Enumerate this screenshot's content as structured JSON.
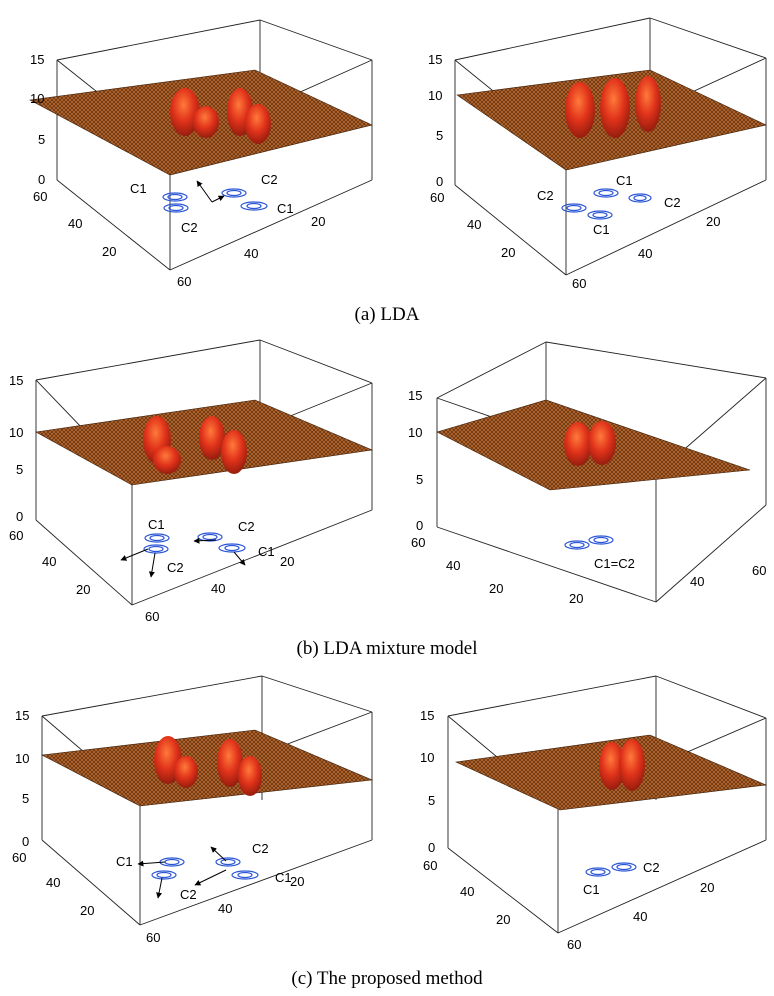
{
  "panels": [
    {
      "id": "a-left",
      "z_ticks": [
        "15",
        "10",
        "5",
        "0"
      ],
      "y_ticks": [
        "60",
        "40",
        "20"
      ],
      "x_ticks": [
        "60",
        "40",
        "20"
      ],
      "labels": [
        "C1",
        "C2",
        "C2",
        "C1"
      ],
      "peaks": 4
    },
    {
      "id": "a-right",
      "z_ticks": [
        "15",
        "10",
        "5",
        "0"
      ],
      "y_ticks": [
        "60",
        "40",
        "20"
      ],
      "x_ticks": [
        "60",
        "40",
        "20"
      ],
      "labels": [
        "C1",
        "C2",
        "C2",
        "C1"
      ],
      "peaks": 3
    },
    {
      "id": "b-left",
      "z_ticks": [
        "15",
        "10",
        "5",
        "0"
      ],
      "y_ticks": [
        "60",
        "40",
        "20"
      ],
      "x_ticks": [
        "60",
        "40",
        "20"
      ],
      "labels": [
        "C1",
        "C2",
        "C2",
        "C1"
      ],
      "peaks": 4
    },
    {
      "id": "b-right",
      "z_ticks": [
        "15",
        "10",
        "5",
        "0"
      ],
      "y_ticks": [
        "60",
        "40",
        "20"
      ],
      "x_ticks": [
        "20",
        "40",
        "60"
      ],
      "labels": [
        "C1=C2"
      ],
      "peaks": 2
    },
    {
      "id": "c-left",
      "z_ticks": [
        "15",
        "10",
        "5",
        "0"
      ],
      "y_ticks": [
        "60",
        "40",
        "20"
      ],
      "x_ticks": [
        "60",
        "40",
        "20"
      ],
      "labels": [
        "C1",
        "C2",
        "C2",
        "C1"
      ],
      "peaks": 4
    },
    {
      "id": "c-right",
      "z_ticks": [
        "15",
        "10",
        "5",
        "0"
      ],
      "y_ticks": [
        "60",
        "40",
        "20"
      ],
      "x_ticks": [
        "60",
        "40",
        "20"
      ],
      "labels": [
        "C2",
        "C1"
      ],
      "peaks": 2
    }
  ],
  "captions": {
    "a": "(a) LDA",
    "b": "(b) LDA mixture model",
    "c": "(c) The proposed method"
  },
  "colors": {
    "surface_base": "#b0652c",
    "surface_mesh": "#3a1c08",
    "peak": "#e0321a",
    "contour": "#2b56d6"
  },
  "chart_data": [
    {
      "type": "surface",
      "subplot": "a-left",
      "zlim": [
        0,
        15
      ],
      "xlim": [
        0,
        60
      ],
      "ylim": [
        0,
        60
      ],
      "plane_level": 10
    },
    {
      "type": "surface",
      "subplot": "a-right",
      "zlim": [
        0,
        15
      ],
      "xlim": [
        0,
        60
      ],
      "ylim": [
        0,
        60
      ],
      "plane_level": 10
    },
    {
      "type": "surface",
      "subplot": "b-left",
      "zlim": [
        0,
        15
      ],
      "xlim": [
        0,
        60
      ],
      "ylim": [
        0,
        60
      ],
      "plane_level": 10
    },
    {
      "type": "surface",
      "subplot": "b-right",
      "zlim": [
        0,
        15
      ],
      "xlim": [
        0,
        60
      ],
      "ylim": [
        0,
        60
      ],
      "plane_level": 10
    },
    {
      "type": "surface",
      "subplot": "c-left",
      "zlim": [
        0,
        15
      ],
      "xlim": [
        0,
        60
      ],
      "ylim": [
        0,
        60
      ],
      "plane_level": 10
    },
    {
      "type": "surface",
      "subplot": "c-right",
      "zlim": [
        0,
        15
      ],
      "xlim": [
        0,
        60
      ],
      "ylim": [
        0,
        60
      ],
      "plane_level": 10
    }
  ]
}
